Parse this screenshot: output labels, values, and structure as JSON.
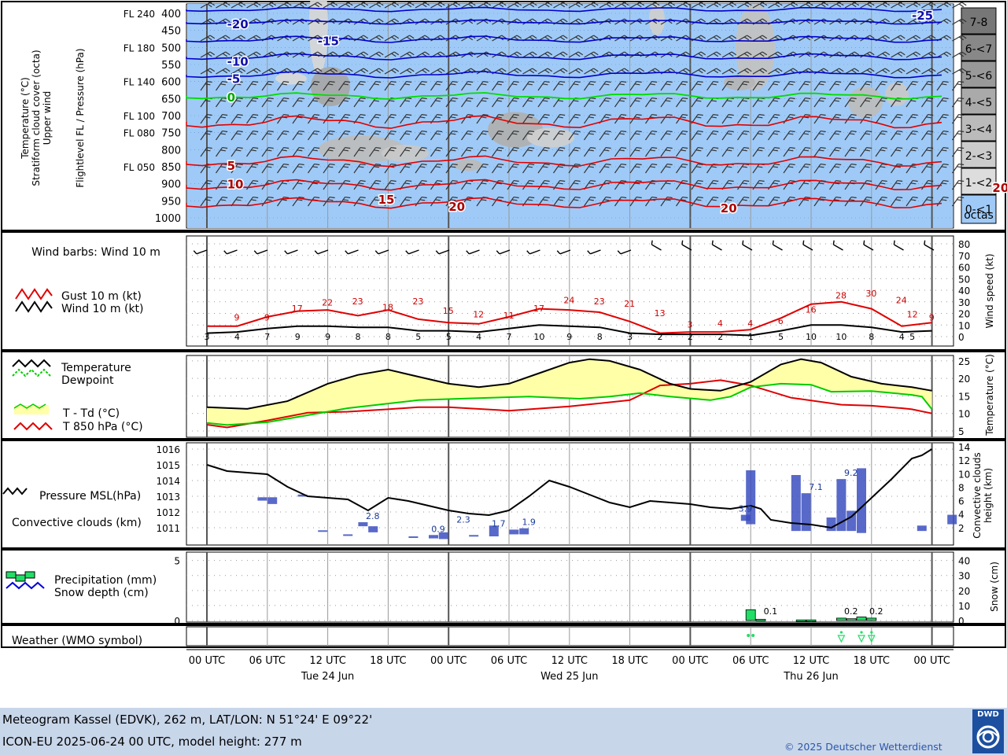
{
  "footer": {
    "line1": "Meteogram Kassel (EDVK), 262 m, LAT/LON: N 51°24' E 09°22'",
    "line2": "ICON-EU 2025-06-24 00 UTC, model height: 277 m",
    "copyright": "© 2025 Deutscher Wetterdienst",
    "logo_text": "DWD"
  },
  "time_axis": {
    "hour_labels": [
      "00 UTC",
      "06 UTC",
      "12 UTC",
      "18 UTC",
      "00 UTC",
      "06 UTC",
      "12 UTC",
      "18 UTC",
      "00 UTC",
      "06 UTC",
      "12 UTC",
      "18 UTC",
      "00 UTC"
    ],
    "day_labels": [
      "Tue 24 Jun",
      "Wed 25 Jun",
      "Thu 26 Jun"
    ]
  },
  "colors": {
    "cloud_sky": "#9fcaf7",
    "temp_line": "#e00000",
    "freezing_line": "#00dd00",
    "cold_line": "#0000cc",
    "dewpoint": "#00cc00",
    "fill_spread": "#ffffa8",
    "conv_bar": "#3b4fc0",
    "precip_bar": "#22dd66"
  },
  "chart_data": [
    {
      "type": "heatmap",
      "title": "Upper wind / Stratiform cloud cover",
      "ylabel_left": [
        "Temperature (°C)",
        "Stratiform cloud cover (octa)",
        "Upper wind"
      ],
      "ylabel_inner": "Flightlevel FL / Pressure (hPa)",
      "pressure_levels": [
        400,
        450,
        500,
        550,
        600,
        650,
        700,
        750,
        800,
        850,
        900,
        950,
        1000
      ],
      "flight_levels": [
        {
          "fl": "FL 240",
          "p": 400
        },
        {
          "fl": "FL 180",
          "p": 500
        },
        {
          "fl": "FL 140",
          "p": 600
        },
        {
          "fl": "FL 100",
          "p": 700
        },
        {
          "fl": "FL 080",
          "p": 750
        },
        {
          "fl": "FL 050",
          "p": 850
        }
      ],
      "cloud_legend": [
        "7-8",
        "6-<7",
        "5-<6",
        "4-<5",
        "3-<4",
        "2-<3",
        "1-<2",
        "0-<1"
      ],
      "cloud_legend_unit": "octas",
      "isotherm_labels": [
        {
          "text": "-20",
          "h": 2,
          "p": 430,
          "color": "cold"
        },
        {
          "text": "-15",
          "h": 11,
          "p": 480,
          "color": "cold"
        },
        {
          "text": "-10",
          "h": 2,
          "p": 540,
          "color": "cold"
        },
        {
          "text": "-5",
          "h": 2,
          "p": 590,
          "color": "cold"
        },
        {
          "text": "0",
          "h": 2,
          "p": 645,
          "color": "freeze"
        },
        {
          "text": "5",
          "h": 2,
          "p": 845,
          "color": "warm"
        },
        {
          "text": "10",
          "h": 2,
          "p": 900,
          "color": "warm"
        },
        {
          "text": "15",
          "h": 17,
          "p": 945,
          "color": "warm"
        },
        {
          "text": "20",
          "h": 24,
          "p": 965,
          "color": "warm"
        },
        {
          "text": "20",
          "h": 51,
          "p": 970,
          "color": "warm"
        },
        {
          "text": "-25",
          "h": 70,
          "p": 405,
          "color": "cold"
        },
        {
          "text": "-25",
          "h": 96,
          "p": 405,
          "color": "cold"
        },
        {
          "text": "20",
          "h": 78,
          "p": 910,
          "color": "warm"
        },
        {
          "text": "20",
          "h": 84,
          "p": 968,
          "color": "warm"
        }
      ]
    },
    {
      "type": "line",
      "title": "Wind barbs: Wind 10 m",
      "legend": [
        "Gust 10 m (kt)",
        "Wind 10 m (kt)"
      ],
      "ylabel": "Wind speed (kt)",
      "ylim": [
        0,
        80
      ],
      "yticks": [
        0,
        10,
        20,
        30,
        40,
        50,
        60,
        70,
        80
      ],
      "x_hours": [
        0,
        3,
        6,
        9,
        12,
        15,
        18,
        21,
        24,
        27,
        30,
        33,
        36,
        39,
        42,
        45,
        48,
        51,
        54,
        57,
        60,
        63,
        66,
        69
      ],
      "gust": [
        9,
        9,
        17,
        22,
        23,
        18,
        23,
        15,
        12,
        11,
        17,
        24,
        23,
        21,
        13,
        3,
        4,
        4,
        6,
        16,
        28,
        30,
        24,
        9
      ],
      "gust_end": 12,
      "wind": [
        3,
        4,
        7,
        9,
        9,
        8,
        8,
        5,
        5,
        4,
        7,
        10,
        9,
        8,
        3,
        2,
        2,
        2,
        1,
        5,
        10,
        10,
        8,
        4
      ],
      "wind_end": 5
    },
    {
      "type": "line",
      "legend": [
        "Temperature",
        "Dewpoint",
        "T - Td (°C)",
        "T 850 hPa (°C)"
      ],
      "ylabel": "Temperature (°C)",
      "ylim": [
        5,
        27
      ],
      "yticks": [
        5,
        10,
        15,
        20,
        25
      ],
      "temperature": [
        [
          0,
          11.8
        ],
        [
          4,
          11.3
        ],
        [
          8,
          13.5
        ],
        [
          12,
          18.5
        ],
        [
          15,
          21
        ],
        [
          18,
          22.5
        ],
        [
          21,
          20.5
        ],
        [
          24,
          18.5
        ],
        [
          27,
          17.5
        ],
        [
          30,
          18.5
        ],
        [
          33,
          21.5
        ],
        [
          36,
          24.5
        ],
        [
          38,
          25.5
        ],
        [
          40,
          25
        ],
        [
          43,
          22.5
        ],
        [
          46,
          18.5
        ],
        [
          48,
          17
        ],
        [
          51,
          16.5
        ],
        [
          54,
          19
        ],
        [
          57,
          24
        ],
        [
          59,
          25.5
        ],
        [
          61,
          24.5
        ],
        [
          64,
          20.5
        ],
        [
          67,
          18.5
        ],
        [
          70,
          17.5
        ],
        [
          72,
          16.5
        ]
      ],
      "dewpoint": [
        [
          0,
          7.3
        ],
        [
          2,
          6.7
        ],
        [
          6,
          7.5
        ],
        [
          10,
          9.5
        ],
        [
          14,
          11.5
        ],
        [
          17,
          12.5
        ],
        [
          21,
          13.8
        ],
        [
          26,
          14.3
        ],
        [
          32,
          14.8
        ],
        [
          37,
          14.2
        ],
        [
          40,
          14.8
        ],
        [
          43,
          15.8
        ],
        [
          46,
          14.8
        ],
        [
          50,
          13.8
        ],
        [
          52,
          14.8
        ],
        [
          54,
          17.5
        ],
        [
          57,
          18.5
        ],
        [
          60,
          18.2
        ],
        [
          62,
          16.2
        ],
        [
          66,
          16.4
        ],
        [
          70,
          15.3
        ],
        [
          71,
          14.8
        ],
        [
          72,
          11.2
        ]
      ],
      "t850": [
        [
          0,
          6.8
        ],
        [
          2,
          6.0
        ],
        [
          6,
          8.0
        ],
        [
          10,
          10.2
        ],
        [
          14,
          10.5
        ],
        [
          18,
          11.2
        ],
        [
          21,
          11.8
        ],
        [
          24,
          11.8
        ],
        [
          30,
          10.8
        ],
        [
          36,
          12.0
        ],
        [
          42,
          13.8
        ],
        [
          45,
          18.0
        ],
        [
          48,
          18.5
        ],
        [
          51,
          19.5
        ],
        [
          54,
          18.0
        ],
        [
          58,
          14.5
        ],
        [
          63,
          12.5
        ],
        [
          66,
          12.2
        ],
        [
          69,
          11.5
        ],
        [
          70,
          11.2
        ],
        [
          72,
          10.0
        ]
      ]
    },
    {
      "type": "line",
      "legend": [
        "Pressure MSL(hPa)",
        "Convective clouds (km)"
      ],
      "ylabel_left_ticks": [
        1011,
        1012,
        1013,
        1014,
        1015,
        1016
      ],
      "ylim_pressure": [
        1010.5,
        1016.2
      ],
      "ylabel": "Convective clouds height (km)",
      "ylim_height": [
        0,
        14
      ],
      "yticks_height": [
        2,
        4,
        6,
        8,
        10,
        12,
        14
      ],
      "pressure": [
        [
          0,
          1015.0
        ],
        [
          2,
          1014.6
        ],
        [
          4,
          1014.5
        ],
        [
          6,
          1014.4
        ],
        [
          8,
          1013.6
        ],
        [
          10,
          1013.0
        ],
        [
          12,
          1012.9
        ],
        [
          14,
          1012.8
        ],
        [
          16,
          1012.1
        ],
        [
          18,
          1012.9
        ],
        [
          20,
          1012.7
        ],
        [
          22,
          1012.4
        ],
        [
          24,
          1012.1
        ],
        [
          26,
          1011.9
        ],
        [
          28,
          1011.8
        ],
        [
          30,
          1012.1
        ],
        [
          32,
          1013.0
        ],
        [
          34,
          1014.0
        ],
        [
          36,
          1013.6
        ],
        [
          38,
          1013.1
        ],
        [
          40,
          1012.6
        ],
        [
          42,
          1012.3
        ],
        [
          44,
          1012.7
        ],
        [
          46,
          1012.6
        ],
        [
          48,
          1012.5
        ],
        [
          50,
          1012.3
        ],
        [
          52,
          1012.2
        ],
        [
          54,
          1012.4
        ],
        [
          55,
          1012.2
        ],
        [
          56,
          1011.5
        ],
        [
          58,
          1011.3
        ],
        [
          60,
          1011.2
        ],
        [
          62,
          1011.0
        ],
        [
          64,
          1011.7
        ],
        [
          66,
          1012.9
        ],
        [
          68,
          1014.1
        ],
        [
          70,
          1015.4
        ],
        [
          71,
          1015.6
        ],
        [
          72,
          1016.0
        ]
      ],
      "conv_bars": [
        [
          5.5,
          6,
          6.5
        ],
        [
          6.5,
          5.5,
          6.5
        ],
        [
          9.5,
          6.6,
          6.9
        ],
        [
          11.5,
          1.5,
          1.6
        ],
        [
          14,
          0.8,
          1.0
        ],
        [
          15.5,
          2.2,
          2.8
        ],
        [
          16.5,
          1.3,
          2.2
        ],
        [
          20.5,
          0.5,
          0.7
        ],
        [
          22.5,
          0.4,
          0.9
        ],
        [
          23.5,
          0.3,
          1.3
        ],
        [
          26.5,
          0.7,
          0.9
        ],
        [
          28.5,
          0.7,
          2.3
        ],
        [
          30.5,
          1.0,
          1.7
        ],
        [
          31.5,
          1.0,
          1.9
        ],
        [
          53.5,
          3.0,
          3.9
        ],
        [
          54,
          2.5,
          10.5
        ],
        [
          58.5,
          1.5,
          9.8
        ],
        [
          59.5,
          1.5,
          7.1
        ],
        [
          62,
          1.5,
          3.5
        ],
        [
          63,
          1.5,
          9.2
        ],
        [
          64,
          1.5,
          4.5
        ],
        [
          65,
          1.2,
          10.8
        ],
        [
          71,
          1.5,
          2.3
        ],
        [
          74,
          2.5,
          3.9
        ]
      ],
      "conv_labels": [
        {
          "h": 16,
          "v": "2.8"
        },
        {
          "h": 22.5,
          "v": "0.9"
        },
        {
          "h": 25,
          "v": "2.3"
        },
        {
          "h": 28.5,
          "v": "1.7"
        },
        {
          "h": 31.5,
          "v": "1.9"
        },
        {
          "h": 53,
          "v": "3.9"
        },
        {
          "h": 60,
          "v": "7.1"
        },
        {
          "h": 63.5,
          "v": "9.2"
        }
      ]
    },
    {
      "type": "bar",
      "legend": [
        "Precipitation (mm)",
        "Snow depth (cm)"
      ],
      "yticks_left": [
        0,
        5
      ],
      "ylim_precip": [
        0,
        5.5
      ],
      "ylabel": "Snow (cm)",
      "yticks_right": [
        0,
        10,
        20,
        30,
        40
      ],
      "ylim_snow": [
        0,
        44
      ],
      "precip_bars": [
        [
          54,
          0.9
        ],
        [
          55,
          0.1
        ],
        [
          59,
          0.05
        ],
        [
          60,
          0.05
        ],
        [
          63,
          0.2
        ],
        [
          64,
          0.15
        ],
        [
          65,
          0.3
        ],
        [
          66,
          0.2
        ]
      ],
      "precip_labels": [
        {
          "h": 55.5,
          "v": "0.1"
        },
        {
          "h": 63.5,
          "v": "0.2"
        },
        {
          "h": 66,
          "v": "0.2"
        }
      ]
    },
    {
      "type": "table",
      "title": "Weather (WMO symbol)",
      "symbols": [
        {
          "h": 54,
          "kind": "rain"
        },
        {
          "h": 63,
          "kind": "shower"
        },
        {
          "h": 65,
          "kind": "shower"
        },
        {
          "h": 66,
          "kind": "shower"
        }
      ]
    }
  ]
}
